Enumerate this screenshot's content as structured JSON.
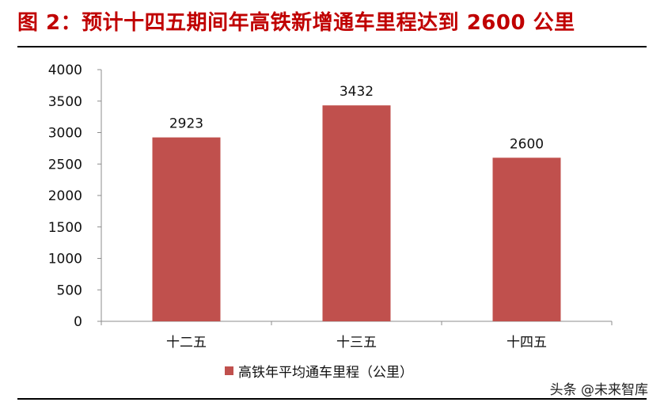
{
  "title": "图 2：预计十四五期间年高铁新增通车里程达到 2600 公里",
  "watermark": "头条 @未来智库",
  "colors": {
    "title": "#c00000",
    "bar": "#c0504d",
    "axis": "#8c8c8c"
  },
  "chart_data": {
    "type": "bar",
    "categories": [
      "十二五",
      "十三五",
      "十四五"
    ],
    "series": [
      {
        "name": "高铁年平均通车里程（公里）",
        "values": [
          2923,
          3432,
          2600
        ]
      }
    ],
    "ylim": [
      0,
      4000
    ],
    "yticks": [
      0,
      500,
      1000,
      1500,
      2000,
      2500,
      3000,
      3500,
      4000
    ],
    "data_labels": [
      "2923",
      "3432",
      "2600"
    ],
    "grid": false,
    "legend_position": "bottom-center"
  }
}
